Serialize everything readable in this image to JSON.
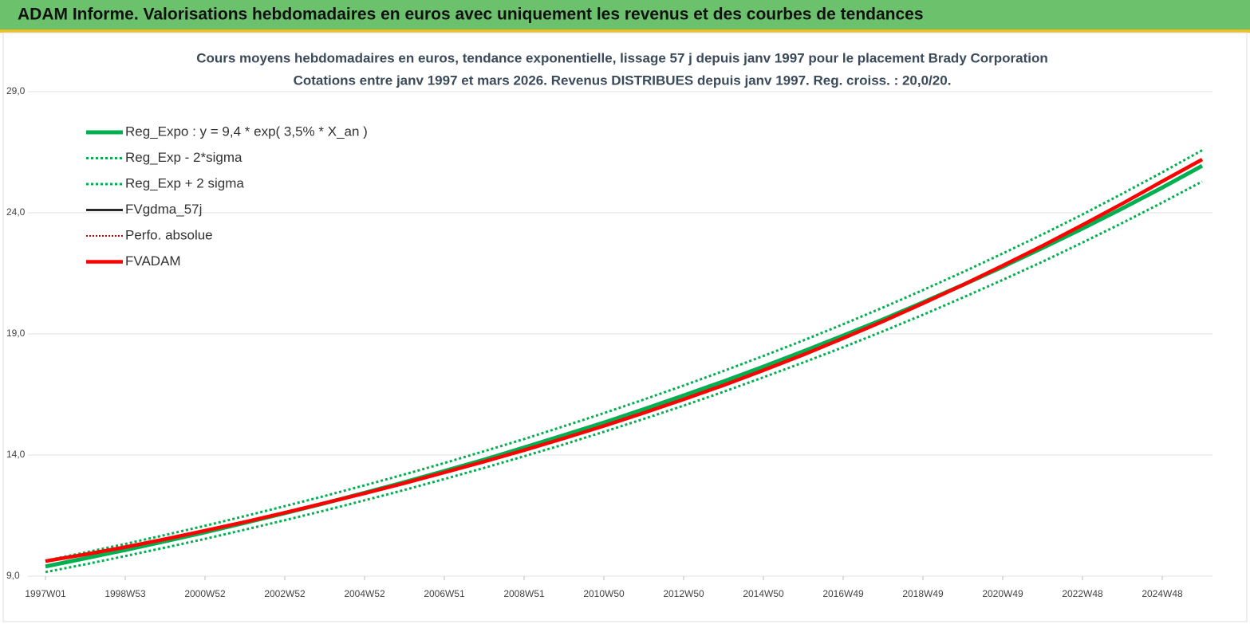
{
  "page_title": "ADAM Informe. Valorisations hebdomadaires en euros avec uniquement les revenus et des courbes de tendances",
  "chart_data": {
    "type": "line",
    "title": "Cours moyens hebdomadaires en euros, tendance exponentielle, lissage 57 j depuis janv 1997 pour le placement Brady Corporation",
    "subtitle": "Cotations entre janv 1997 et mars 2026. Revenus DISTRIBUES depuis janv 1997. Reg. croiss. : 20,0/20.",
    "categories": [
      "1997W01",
      null,
      "1998W53",
      null,
      "2000W52",
      null,
      "2002W52",
      null,
      "2004W52",
      null,
      "2006W51",
      null,
      "2008W51",
      null,
      "2010W50",
      null,
      "2012W50",
      null,
      "2014W50",
      null,
      "2016W49",
      null,
      "2018W49",
      null,
      "2020W49",
      null,
      "2022W48",
      null,
      "2024W48",
      null
    ],
    "ylim": [
      9,
      29
    ],
    "yticks": [
      {
        "value": 9,
        "label": "9,0"
      },
      {
        "value": 14,
        "label": "14,0"
      },
      {
        "value": 19,
        "label": "19,0"
      },
      {
        "value": 24,
        "label": "24,0"
      },
      {
        "value": 29,
        "label": "29,0"
      }
    ],
    "grid": true,
    "legend": "upper left",
    "series": [
      {
        "name": "Reg_Expo : y = 9,4 * exp( 3,5% *  X_an )",
        "color": "#00b050",
        "style": "solid",
        "width": 5,
        "values": [
          9.4,
          9.74,
          10.08,
          10.44,
          10.81,
          11.2,
          11.6,
          12.01,
          12.44,
          12.88,
          13.34,
          13.81,
          14.31,
          14.82,
          15.34,
          15.89,
          16.46,
          17.04,
          17.65,
          18.28,
          18.93,
          19.6,
          20.3,
          21.02,
          21.77,
          22.55,
          23.35,
          24.18,
          25.04,
          25.94
        ]
      },
      {
        "name": "Reg_Exp - 2*sigma",
        "color": "#00b050",
        "style": "dotted",
        "width": 3,
        "values": [
          9.17,
          9.49,
          9.83,
          10.18,
          10.54,
          10.92,
          11.31,
          11.71,
          12.13,
          12.56,
          13.01,
          13.47,
          13.95,
          14.44,
          14.96,
          15.49,
          16.04,
          16.61,
          17.21,
          17.82,
          18.45,
          19.11,
          19.79,
          20.5,
          21.23,
          21.98,
          22.77,
          23.58,
          24.42,
          25.29
        ]
      },
      {
        "name": "Reg_Exp + 2 sigma",
        "color": "#00b050",
        "style": "dotted",
        "width": 3,
        "values": [
          9.64,
          9.98,
          10.33,
          10.7,
          11.08,
          11.48,
          11.89,
          12.31,
          12.75,
          13.2,
          13.67,
          14.16,
          14.66,
          15.19,
          15.73,
          16.29,
          16.87,
          17.47,
          18.09,
          18.73,
          19.4,
          20.09,
          20.81,
          21.55,
          22.32,
          23.11,
          23.93,
          24.79,
          25.67,
          26.58
        ]
      },
      {
        "name": "FVgdma_57j",
        "color": "#000000",
        "style": "solid",
        "width": 2.5,
        "values": [
          9.62,
          9.9,
          10.2,
          10.53,
          10.88,
          11.24,
          11.62,
          12.02,
          12.42,
          12.84,
          13.28,
          13.73,
          14.2,
          14.69,
          15.2,
          15.74,
          16.3,
          16.88,
          17.5,
          18.14,
          18.82,
          19.52,
          20.26,
          21.02,
          21.82,
          22.64,
          23.5,
          24.38,
          25.3,
          26.2
        ]
      },
      {
        "name": "Perfo. absolue",
        "color": "#c00000",
        "style": "dotted",
        "width": 2,
        "values": [
          9.62,
          9.9,
          10.2,
          10.53,
          10.88,
          11.24,
          11.62,
          12.02,
          12.42,
          12.84,
          13.28,
          13.73,
          14.2,
          14.69,
          15.2,
          15.74,
          16.3,
          16.88,
          17.5,
          18.14,
          18.82,
          19.52,
          20.26,
          21.02,
          21.82,
          22.64,
          23.5,
          24.38,
          25.3,
          26.2
        ]
      },
      {
        "name": "FVADAM",
        "color": "#ff0000",
        "style": "solid",
        "width": 4.5,
        "values": [
          9.62,
          9.9,
          10.2,
          10.53,
          10.88,
          11.24,
          11.62,
          12.02,
          12.42,
          12.84,
          13.28,
          13.73,
          14.2,
          14.69,
          15.2,
          15.74,
          16.3,
          16.88,
          17.5,
          18.14,
          18.82,
          19.52,
          20.26,
          21.02,
          21.82,
          22.64,
          23.5,
          24.38,
          25.3,
          26.2
        ]
      }
    ]
  }
}
